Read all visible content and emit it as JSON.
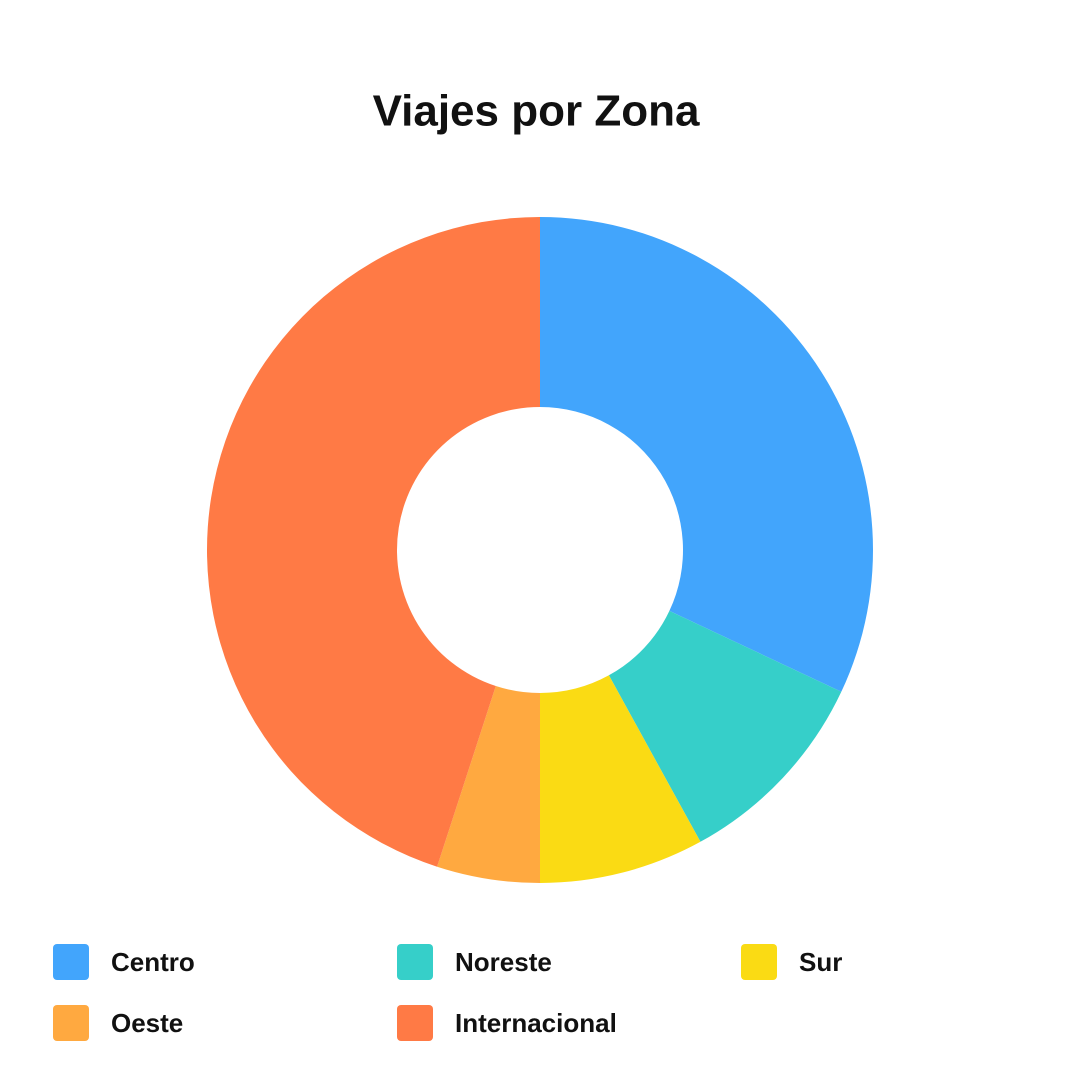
{
  "chart_data": {
    "type": "donut",
    "title": "Viajes por Zona",
    "categories": [
      "Centro",
      "Noreste",
      "Sur",
      "Oeste",
      "Internacional"
    ],
    "values": [
      32,
      10,
      8,
      5,
      45
    ],
    "colors": [
      "#42a5fc",
      "#36cfc9",
      "#fadb14",
      "#ffa940",
      "#ff7a45"
    ]
  }
}
